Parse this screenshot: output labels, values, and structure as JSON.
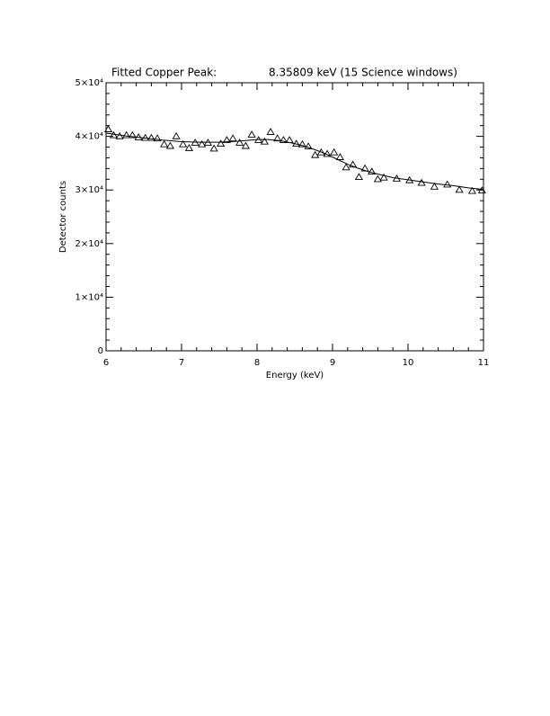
{
  "chart_data": {
    "type": "scatter",
    "title": "Fitted Copper Peak:",
    "subtitle": "8.35809 keV (15 Science windows)",
    "x_label": "Energy (keV)",
    "y_label": "Detector counts",
    "xlim": [
      6,
      11
    ],
    "ylim": [
      0,
      50000
    ],
    "xticks": [
      6,
      7,
      8,
      9,
      10,
      11
    ],
    "yticks": [
      0,
      {
        "value": 10000,
        "label": "1×10⁴"
      },
      {
        "value": 20000,
        "label": "2×10⁴"
      },
      {
        "value": 30000,
        "label": "3×10⁴"
      },
      {
        "value": 40000,
        "label": "4×10⁴"
      },
      {
        "value": 50000,
        "label": "5×10⁴"
      }
    ],
    "minor_per_major": 5,
    "color": "#000000",
    "series": [
      {
        "marker": "triangle",
        "x": [
          6.03,
          6.1,
          6.18,
          6.27,
          6.35,
          6.43,
          6.52,
          6.6,
          6.68,
          6.77,
          6.85,
          6.93,
          7.02,
          7.1,
          7.18,
          7.27,
          7.35,
          7.43,
          7.52,
          7.6,
          7.68,
          7.77,
          7.85,
          7.93,
          8.02,
          8.1,
          8.18,
          8.27,
          8.35,
          8.43,
          8.52,
          8.6,
          8.68,
          8.77,
          8.85,
          8.93,
          9.02,
          9.1,
          9.18,
          9.27,
          9.35,
          9.43,
          9.52,
          9.6,
          9.68,
          9.85,
          10.02,
          10.18,
          10.35,
          10.52,
          10.68,
          10.85,
          10.98
        ],
        "values": [
          41300,
          40200,
          40000,
          40200,
          40200,
          39800,
          39700,
          39700,
          39600,
          38500,
          38200,
          40000,
          38500,
          37800,
          38800,
          38500,
          38800,
          37700,
          38600,
          39300,
          39600,
          38800,
          38200,
          40300,
          39300,
          39000,
          40800,
          39600,
          39300,
          39300,
          38600,
          38500,
          38100,
          36500,
          37000,
          36700,
          37000,
          36100,
          34200,
          34700,
          32400,
          34000,
          33400,
          32000,
          32300,
          32100,
          31800,
          31300,
          30600,
          31000,
          30000,
          29800,
          29900
        ]
      },
      {
        "line": true,
        "x": [
          6.0,
          6.25,
          6.5,
          6.75,
          7.0,
          7.25,
          7.5,
          7.75,
          8.0,
          8.15,
          8.3,
          8.45,
          8.6,
          8.75,
          8.9,
          9.05,
          9.2,
          9.35,
          9.5,
          9.65,
          9.8,
          10.0,
          10.2,
          10.4,
          10.6,
          10.8,
          11.0
        ],
        "values": [
          40600,
          40100,
          39700,
          39300,
          39000,
          38900,
          38900,
          39100,
          39400,
          39400,
          39200,
          38800,
          38300,
          37600,
          36800,
          35800,
          34800,
          34000,
          33300,
          32800,
          32300,
          31900,
          31500,
          31100,
          30800,
          30400,
          30100
        ]
      }
    ]
  }
}
